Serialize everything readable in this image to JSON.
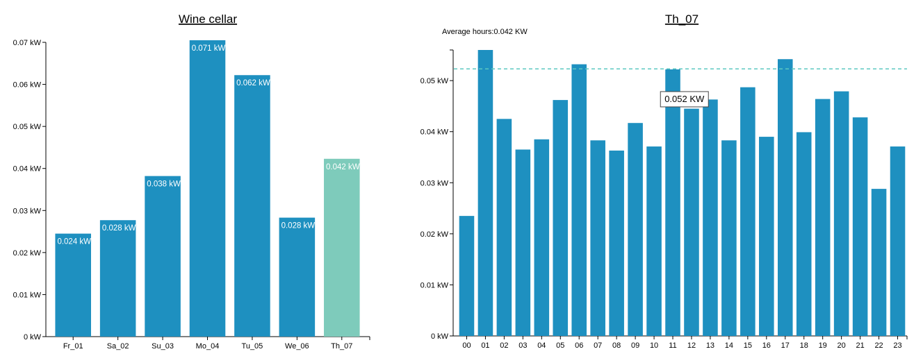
{
  "colors": {
    "bar": "#1e90c0",
    "highlight_bar": "#7ecbbb",
    "average_line": "#5cc8c0",
    "axis": "#000000"
  },
  "chart_data": [
    {
      "type": "bar",
      "title": "Wine cellar",
      "categories": [
        "Fr_01",
        "Sa_02",
        "Su_03",
        "Mo_04",
        "Tu_05",
        "We_06",
        "Th_07"
      ],
      "values": [
        0.0245,
        0.0277,
        0.0382,
        0.0705,
        0.0622,
        0.0283,
        0.0423
      ],
      "value_labels": [
        "0.024 kW",
        "0.028 kW",
        "0.038 kW",
        "0.071 kW",
        "0.062 kW",
        "0.028 kW",
        "0.042 kW"
      ],
      "highlight_category": "Th_07",
      "y_ticks": [
        0,
        0.01,
        0.02,
        0.03,
        0.04,
        0.05,
        0.06,
        0.07
      ],
      "y_tick_labels": [
        "0 kW",
        "0.01 kW",
        "0.02 kW",
        "0.03 kW",
        "0.04 kW",
        "0.05 kW",
        "0.06 kW",
        "0.07 kW"
      ],
      "ylim": [
        0,
        0.07
      ],
      "xlabel": "",
      "ylabel": "",
      "grid": false
    },
    {
      "type": "bar",
      "title": "Th_07",
      "average_label": "Average hours:0.042 KW",
      "categories": [
        "00",
        "01",
        "02",
        "03",
        "04",
        "05",
        "06",
        "07",
        "08",
        "09",
        "10",
        "11",
        "12",
        "13",
        "14",
        "15",
        "16",
        "17",
        "18",
        "19",
        "20",
        "21",
        "22",
        "23"
      ],
      "values": [
        0.0235,
        0.056,
        0.0425,
        0.0365,
        0.0385,
        0.0462,
        0.0532,
        0.0383,
        0.0363,
        0.0417,
        0.0371,
        0.0522,
        0.0445,
        0.0463,
        0.0383,
        0.0487,
        0.039,
        0.0542,
        0.0399,
        0.0464,
        0.0479,
        0.0428,
        0.0288,
        0.0371
      ],
      "reference_line": 0.0523,
      "tooltip": {
        "category": "11",
        "text": "0.052 KW"
      },
      "y_ticks": [
        0,
        0.01,
        0.02,
        0.03,
        0.04,
        0.05
      ],
      "y_tick_labels": [
        "0 kW",
        "0.01 kW",
        "0.02 kW",
        "0.03 kW",
        "0.04 kW",
        "0.05 kW"
      ],
      "ylim": [
        0,
        0.056
      ],
      "xlabel": "",
      "ylabel": "",
      "grid": false
    }
  ]
}
